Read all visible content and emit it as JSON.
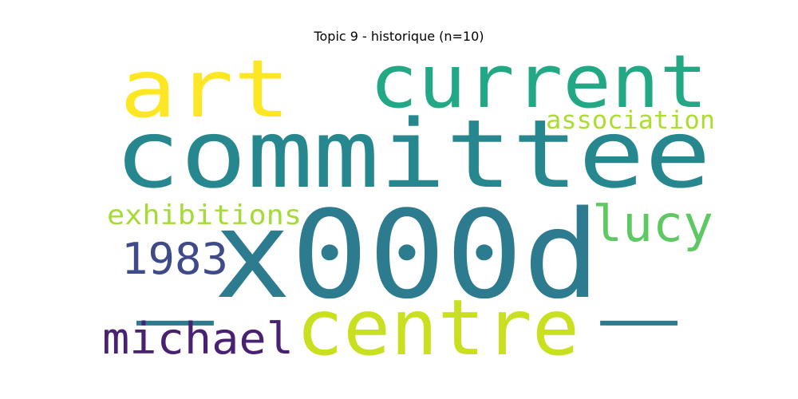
{
  "title": "Topic 9 - historique (n=10)",
  "words": [
    {
      "text": "_x000d_",
      "color": "#2c7b8e",
      "rank": 1
    },
    {
      "text": "committee",
      "color": "#26888e",
      "rank": 2
    },
    {
      "text": "centre",
      "color": "#c8e020",
      "rank": 3
    },
    {
      "text": "current",
      "color": "#22a884",
      "rank": 4
    },
    {
      "text": "art",
      "color": "#fde725",
      "rank": 5
    },
    {
      "text": "lucy",
      "color": "#5ec962",
      "rank": 6
    },
    {
      "text": "michael",
      "color": "#482173",
      "rank": 7
    },
    {
      "text": "1983",
      "color": "#3e4a89",
      "rank": 8
    },
    {
      "text": "exhibitions",
      "color": "#a5db36",
      "rank": 9
    },
    {
      "text": "association",
      "color": "#addc30",
      "rank": 10
    }
  ]
}
